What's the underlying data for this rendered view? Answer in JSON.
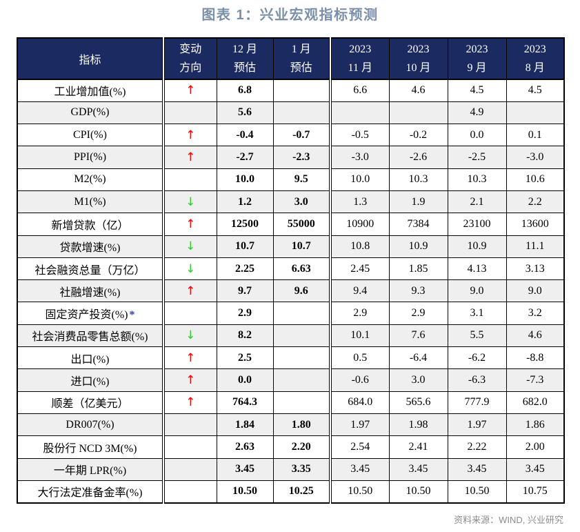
{
  "title": "图表 1：兴业宏观指标预测",
  "source": "资料来源：WIND, 兴业研究",
  "icons": {
    "up": "↑",
    "down": "↓"
  },
  "colors": {
    "header_bg": "#1B2A60",
    "header_text": "#FFFFFF",
    "title_text": "#7A90A8",
    "up_arrow": "#FF0000",
    "down_arrow": "#2FCB2F",
    "footnote_star": "#2244AA",
    "row_stripe": "#EFEFEF",
    "source_text": "#8C8C8C",
    "border": "#000000"
  },
  "chart_data": {
    "type": "table",
    "title": "图表 1：兴业宏观指标预测",
    "columns": [
      "指标",
      "变动方向",
      "12月预估",
      "1月预估",
      "2023 11月",
      "2023 10月",
      "2023 9月",
      "2023 8月"
    ],
    "header": {
      "indicator": "指标",
      "cols": [
        {
          "line1": "变动",
          "line2": "方向"
        },
        {
          "line1": "12 月",
          "line2": "预估"
        },
        {
          "line1": "1 月",
          "line2": "预估"
        },
        {
          "line1": "2023",
          "line2": "11 月"
        },
        {
          "line1": "2023",
          "line2": "10 月"
        },
        {
          "line1": "2023",
          "line2": "9 月"
        },
        {
          "line1": "2023",
          "line2": "8 月"
        }
      ]
    },
    "rows": [
      {
        "label": "工业增加值(%)",
        "arrow": "up",
        "values": [
          "6.8",
          "",
          "6.6",
          "4.6",
          "4.5",
          "4.5"
        ]
      },
      {
        "label": "GDP(%)",
        "arrow": "",
        "values": [
          "5.6",
          "",
          "",
          "",
          "4.9",
          ""
        ]
      },
      {
        "label": "CPI(%)",
        "arrow": "up",
        "values": [
          "-0.4",
          "-0.7",
          "-0.5",
          "-0.2",
          "0.0",
          "0.1"
        ]
      },
      {
        "label": "PPI(%)",
        "arrow": "up",
        "values": [
          "-2.7",
          "-2.3",
          "-3.0",
          "-2.6",
          "-2.5",
          "-3.0"
        ]
      },
      {
        "label": "M2(%)",
        "arrow": "",
        "values": [
          "10.0",
          "9.5",
          "10.0",
          "10.3",
          "10.3",
          "10.6"
        ]
      },
      {
        "label": "M1(%)",
        "arrow": "down",
        "values": [
          "1.2",
          "3.0",
          "1.3",
          "1.9",
          "2.1",
          "2.2"
        ]
      },
      {
        "label": "新增贷款（亿）",
        "arrow": "up",
        "values": [
          "12500",
          "55000",
          "10900",
          "7384",
          "23100",
          "13600"
        ]
      },
      {
        "label": "贷款增速(%)",
        "arrow": "down",
        "values": [
          "10.7",
          "10.7",
          "10.8",
          "10.9",
          "10.9",
          "11.1"
        ]
      },
      {
        "label": "社会融资总量（万亿）",
        "arrow": "down",
        "values": [
          "2.25",
          "6.63",
          "2.45",
          "1.85",
          "4.13",
          "3.13"
        ]
      },
      {
        "label": "社融增速(%)",
        "arrow": "up",
        "values": [
          "9.7",
          "9.6",
          "9.4",
          "9.3",
          "9.0",
          "9.0"
        ]
      },
      {
        "label": "固定资产投资(%)",
        "arrow": "",
        "star": "*",
        "values": [
          "2.9",
          "",
          "2.9",
          "2.9",
          "3.1",
          "3.2"
        ]
      },
      {
        "label": "社会消费品零售总额(%)",
        "arrow": "down",
        "values": [
          "8.2",
          "",
          "10.1",
          "7.6",
          "5.5",
          "4.6"
        ]
      },
      {
        "label": "出口(%)",
        "arrow": "up",
        "values": [
          "2.5",
          "",
          "0.5",
          "-6.4",
          "-6.2",
          "-8.8"
        ]
      },
      {
        "label": "进口(%)",
        "arrow": "up",
        "values": [
          "0.0",
          "",
          "-0.6",
          "3.0",
          "-6.3",
          "-7.3"
        ]
      },
      {
        "label": "顺差（亿美元）",
        "arrow": "up",
        "values": [
          "764.3",
          "",
          "684.0",
          "565.6",
          "777.9",
          "682.0"
        ]
      },
      {
        "label": "DR007(%)",
        "arrow": "",
        "values": [
          "1.84",
          "1.80",
          "1.97",
          "1.98",
          "1.97",
          "1.86"
        ]
      },
      {
        "label": "股份行 NCD 3M(%)",
        "arrow": "",
        "values": [
          "2.63",
          "2.20",
          "2.54",
          "2.41",
          "2.22",
          "2.00"
        ]
      },
      {
        "label": "一年期 LPR(%)",
        "arrow": "",
        "values": [
          "3.45",
          "3.35",
          "3.45",
          "3.45",
          "3.45",
          "3.45"
        ]
      },
      {
        "label": "大行法定准备金率(%)",
        "arrow": "",
        "values": [
          "10.50",
          "10.25",
          "10.50",
          "10.50",
          "10.50",
          "10.75"
        ]
      }
    ]
  }
}
